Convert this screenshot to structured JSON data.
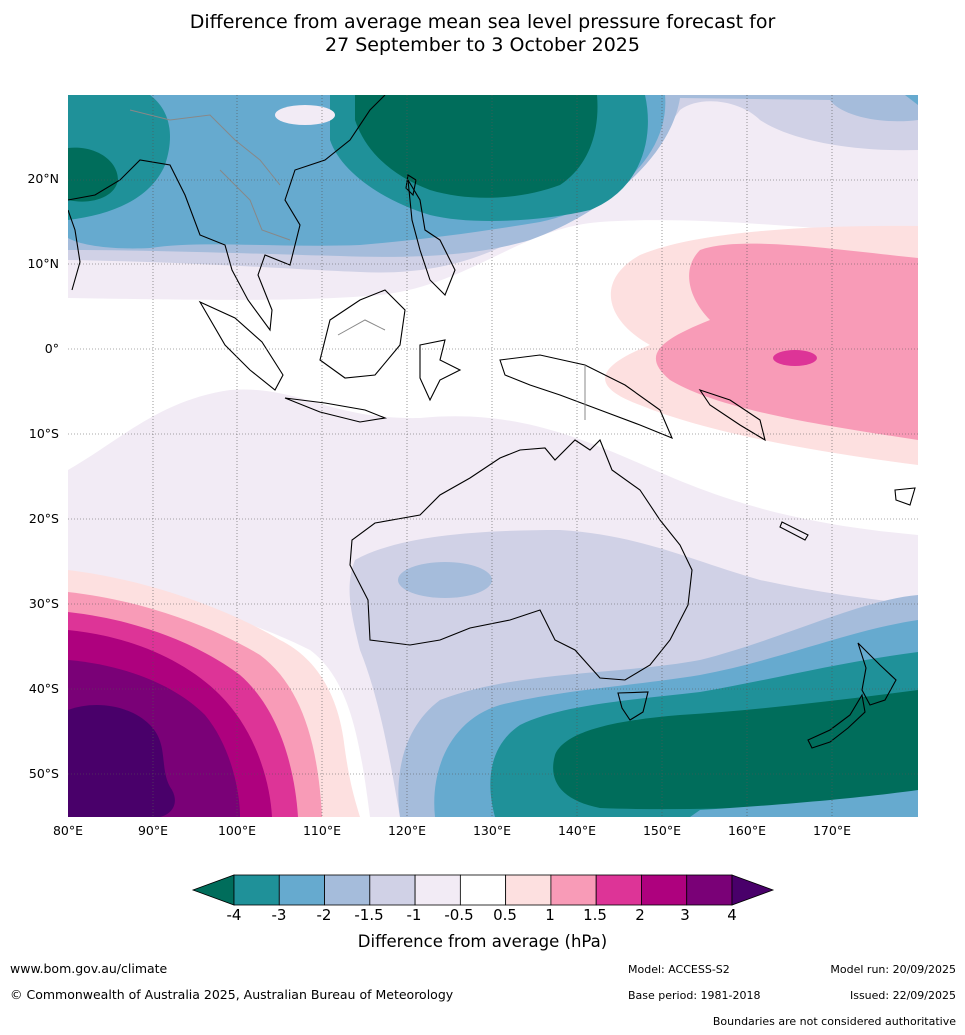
{
  "title_line1": "Difference from average mean sea level pressure forecast for",
  "title_line2": "27 September to 3 October 2025",
  "lat_labels": [
    "20°N",
    "10°N",
    "0°",
    "10°S",
    "20°S",
    "30°S",
    "40°S",
    "50°S"
  ],
  "lon_labels": [
    "80°E",
    "90°E",
    "100°E",
    "110°E",
    "120°E",
    "130°E",
    "140°E",
    "150°E",
    "160°E",
    "170°E"
  ],
  "colorbar": {
    "title": "Difference from average (hPa)",
    "tick_labels": [
      "-4",
      "-3",
      "-2",
      "-1.5",
      "-1",
      "-0.5",
      "0.5",
      "1",
      "1.5",
      "2",
      "3",
      "4"
    ],
    "colors": [
      "#006d5b",
      "#1f9199",
      "#66aacf",
      "#a5bcdb",
      "#d0d1e6",
      "#f2ebf5",
      "#ffffff",
      "#fde0e0",
      "#f89bb7",
      "#dd3497",
      "#ae017e",
      "#7a0177",
      "#49006a"
    ]
  },
  "footer": {
    "url": "www.bom.gov.au/climate",
    "copyright": "© Commonwealth of Australia 2025, Australian Bureau of Meteorology",
    "model": "Model: ACCESS-S2",
    "base_period": "Base period: 1981-2018",
    "model_run": "Model run: 20/09/2025",
    "issued": "Issued: 22/09/2025",
    "disclaimer": "Boundaries are not considered authoritative"
  }
}
